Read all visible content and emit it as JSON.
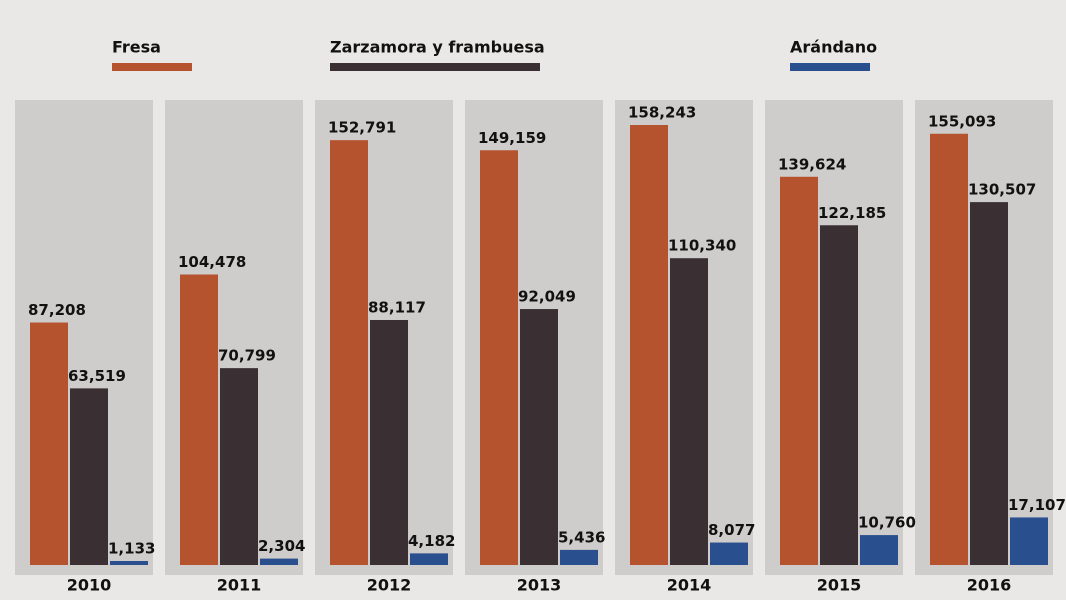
{
  "chart_data": {
    "type": "bar",
    "categories": [
      "2010",
      "2011",
      "2012",
      "2013",
      "2014",
      "2015",
      "2016"
    ],
    "series": [
      {
        "name": "Fresa",
        "color": "#b5532e",
        "values": [
          87208,
          104478,
          152791,
          149159,
          158243,
          139624,
          155093
        ],
        "value_labels": [
          "87,208",
          "104,478",
          "152,791",
          "149,159",
          "158,243",
          "139,624",
          "155,093"
        ]
      },
      {
        "name": "Zarzamora y frambuesa",
        "color": "#3a2f33",
        "values": [
          63519,
          70799,
          88117,
          92049,
          110340,
          122185,
          130507
        ],
        "value_labels": [
          "63,519",
          "70,799",
          "88,117",
          "92,049",
          "110,340",
          "122,185",
          "130,507"
        ]
      },
      {
        "name": "Arándano",
        "color": "#2a4f8f",
        "values": [
          1133,
          2304,
          4182,
          5436,
          8077,
          10760,
          17107
        ],
        "value_labels": [
          "1,133",
          "2,304",
          "4,182",
          "5,436",
          "8,077",
          "10,760",
          "17,107"
        ]
      }
    ]
  }
}
